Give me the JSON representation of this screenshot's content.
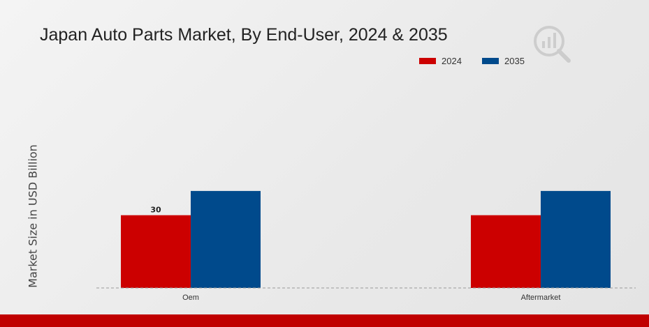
{
  "colors": {
    "series_2024": "#cc0000",
    "series_2035": "#004a8c",
    "accent_bar": "#c00000"
  },
  "watermark_icon": "magnifier-chart-logo-icon",
  "chart_data": {
    "type": "bar",
    "title": "Japan Auto Parts Market, By End-User, 2024 & 2035",
    "ylabel": "Market Size in USD Billion",
    "xlabel": "",
    "categories": [
      "Oem",
      "Aftermarket"
    ],
    "series": [
      {
        "name": "2024",
        "values": [
          30,
          30
        ],
        "color": "#cc0000"
      },
      {
        "name": "2035",
        "values": [
          40,
          40
        ],
        "color": "#004a8c"
      }
    ],
    "data_labels": [
      {
        "series": 0,
        "category": 0,
        "text": "30"
      }
    ],
    "ylim": [
      0,
      90
    ],
    "grid": false,
    "legend_position": "top-right"
  }
}
